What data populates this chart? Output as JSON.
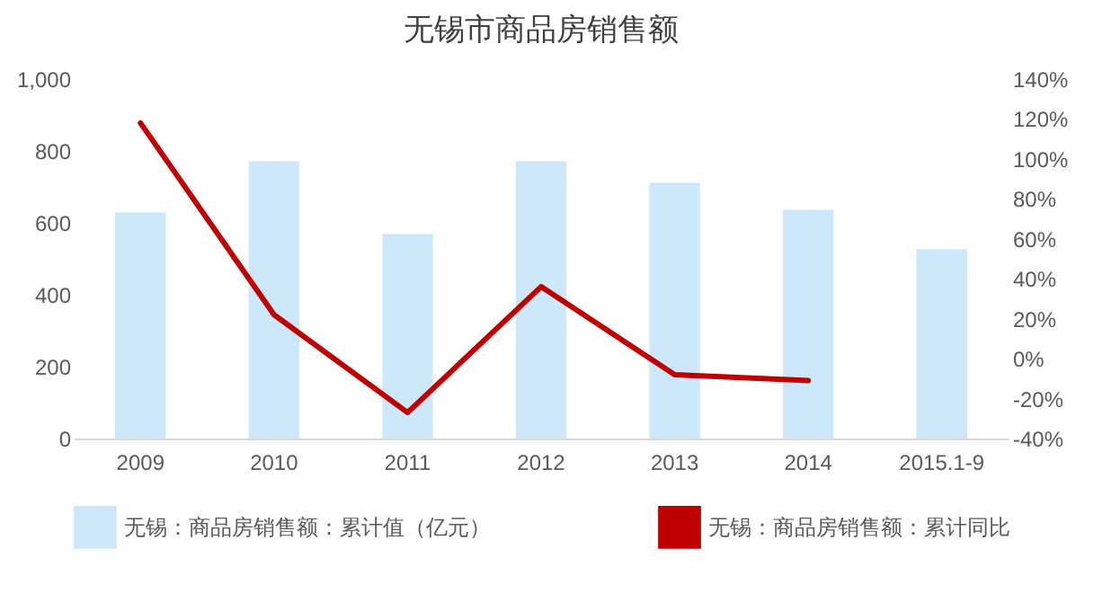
{
  "chart_data": {
    "type": "bar",
    "title": "无锡市商品房销售额",
    "categories": [
      "2009",
      "2010",
      "2011",
      "2012",
      "2013",
      "2014",
      "2015.1-9"
    ],
    "series": [
      {
        "name": "无锡：商品房销售额：累计值（亿元）",
        "color": "#cce8fa",
        "values": [
          629,
          771,
          569,
          771,
          711,
          636,
          527
        ]
      },
      {
        "name": "无锡：商品房销售额：累计同比",
        "type": "line",
        "axis": "y2",
        "color": "#c00000",
        "values": [
          118,
          22,
          -27,
          36,
          -8,
          -11,
          null
        ]
      }
    ],
    "ylim": [
      0,
      1000
    ],
    "yticks": [
      0,
      {
        "value": 200,
        "label": "200"
      },
      {
        "value": 400,
        "label": "400"
      },
      {
        "value": 600,
        "label": "600"
      },
      {
        "value": 800,
        "label": "800"
      },
      {
        "value": 1000,
        "label": "1,000"
      }
    ],
    "y2lim": [
      -40,
      140
    ],
    "y2ticks": [
      {
        "value": -40,
        "label": "-40%"
      },
      {
        "value": -20,
        "label": "-20%"
      },
      {
        "value": 0,
        "label": "0%"
      },
      {
        "value": 20,
        "label": "20%"
      },
      {
        "value": 40,
        "label": "40%"
      },
      {
        "value": 60,
        "label": "60%"
      },
      {
        "value": 80,
        "label": "80%"
      },
      {
        "value": 100,
        "label": "100%"
      },
      {
        "value": 120,
        "label": "120%"
      },
      {
        "value": 140,
        "label": "140%"
      }
    ],
    "grid": false,
    "legend": "bottom",
    "marker": "none",
    "line_style": "solid"
  }
}
